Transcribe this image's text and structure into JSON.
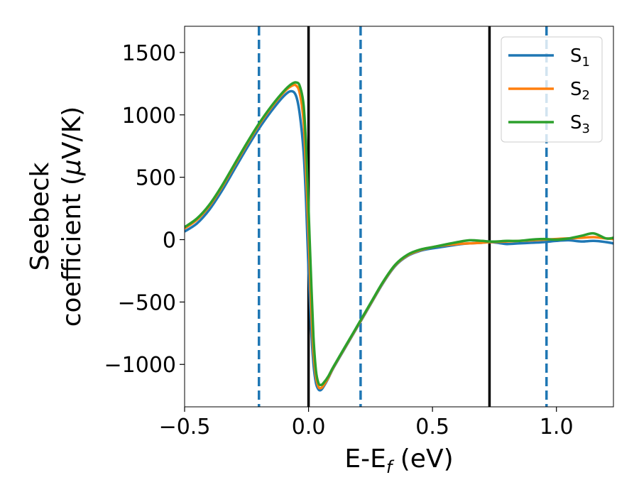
{
  "chart_data": {
    "type": "line",
    "xlabel": "E-E",
    "xlabel_sub": "f",
    "xlabel_unit": " (eV)",
    "ylabel_line1": "Seebeck",
    "ylabel_line2_pre": "coefficient  (",
    "ylabel_mu": "μ",
    "ylabel_line2_post": "V/K)",
    "xlim": [
      -0.5,
      1.23
    ],
    "ylim": [
      -1340,
      1710
    ],
    "xticks": [
      -0.5,
      0.0,
      0.5,
      1.0
    ],
    "xtick_labels": [
      "−0.5",
      "0.0",
      "0.5",
      "1.0"
    ],
    "yticks": [
      -1000,
      -500,
      0,
      500,
      1000,
      1500
    ],
    "ytick_labels": [
      "−1000",
      "−500",
      "0",
      "500",
      "1000",
      "1500"
    ],
    "grid": false,
    "legend_position": "top-right",
    "vlines_solid": [
      0.0,
      0.73
    ],
    "vlines_dashed": [
      -0.2,
      0.21,
      0.96
    ],
    "series": [
      {
        "base": "S",
        "sub": "1",
        "color": "#1f77b4",
        "x": [
          -0.5,
          -0.45,
          -0.4,
          -0.35,
          -0.3,
          -0.25,
          -0.2,
          -0.15,
          -0.1,
          -0.07,
          -0.05,
          -0.035,
          -0.02,
          -0.01,
          0.0,
          0.01,
          0.02,
          0.03,
          0.04,
          0.05,
          0.06,
          0.08,
          0.1,
          0.15,
          0.2,
          0.25,
          0.3,
          0.35,
          0.4,
          0.45,
          0.5,
          0.55,
          0.6,
          0.65,
          0.7,
          0.73,
          0.76,
          0.8,
          0.85,
          0.9,
          0.95,
          1.0,
          1.05,
          1.1,
          1.15,
          1.2,
          1.23
        ],
        "y": [
          65,
          130,
          240,
          390,
          560,
          730,
          890,
          1030,
          1150,
          1190,
          1150,
          1000,
          700,
          300,
          -250,
          -700,
          -1000,
          -1150,
          -1200,
          -1205,
          -1180,
          -1110,
          -1030,
          -860,
          -690,
          -520,
          -350,
          -210,
          -130,
          -90,
          -70,
          -55,
          -40,
          -30,
          -25,
          -20,
          -25,
          -35,
          -30,
          -25,
          -20,
          -10,
          -5,
          -15,
          -10,
          -20,
          -30
        ]
      },
      {
        "base": "S",
        "sub": "2",
        "color": "#ff7f0e",
        "x": [
          -0.5,
          -0.45,
          -0.4,
          -0.35,
          -0.3,
          -0.25,
          -0.2,
          -0.15,
          -0.1,
          -0.07,
          -0.05,
          -0.035,
          -0.02,
          -0.01,
          0.0,
          0.01,
          0.02,
          0.03,
          0.04,
          0.05,
          0.06,
          0.08,
          0.1,
          0.15,
          0.2,
          0.25,
          0.3,
          0.35,
          0.4,
          0.45,
          0.5,
          0.55,
          0.6,
          0.65,
          0.7,
          0.73,
          0.76,
          0.8,
          0.85,
          0.9,
          0.95,
          1.0,
          1.05,
          1.1,
          1.15,
          1.2,
          1.23
        ],
        "y": [
          90,
          160,
          270,
          420,
          590,
          760,
          920,
          1060,
          1180,
          1230,
          1235,
          1170,
          950,
          550,
          50,
          -500,
          -900,
          -1100,
          -1180,
          -1190,
          -1170,
          -1105,
          -1025,
          -855,
          -685,
          -515,
          -345,
          -205,
          -125,
          -85,
          -60,
          -45,
          -35,
          -30,
          -25,
          -20,
          -18,
          -15,
          -10,
          -5,
          0,
          5,
          10,
          15,
          20,
          10,
          5
        ]
      },
      {
        "base": "S",
        "sub": "3",
        "color": "#2ca02c",
        "x": [
          -0.5,
          -0.45,
          -0.4,
          -0.35,
          -0.3,
          -0.25,
          -0.2,
          -0.15,
          -0.1,
          -0.07,
          -0.05,
          -0.035,
          -0.02,
          -0.01,
          0.0,
          0.01,
          0.02,
          0.03,
          0.04,
          0.05,
          0.06,
          0.08,
          0.1,
          0.15,
          0.2,
          0.25,
          0.3,
          0.35,
          0.4,
          0.45,
          0.5,
          0.55,
          0.6,
          0.65,
          0.7,
          0.73,
          0.76,
          0.8,
          0.85,
          0.9,
          0.95,
          1.0,
          1.05,
          1.1,
          1.15,
          1.2,
          1.23
        ],
        "y": [
          100,
          170,
          280,
          430,
          600,
          770,
          930,
          1070,
          1190,
          1245,
          1260,
          1230,
          1080,
          750,
          250,
          -300,
          -780,
          -1050,
          -1150,
          -1165,
          -1150,
          -1095,
          -1020,
          -850,
          -680,
          -510,
          -340,
          -200,
          -120,
          -80,
          -60,
          -40,
          -20,
          -5,
          -10,
          -15,
          -15,
          -10,
          -10,
          0,
          5,
          0,
          10,
          30,
          50,
          10,
          15
        ]
      }
    ]
  }
}
